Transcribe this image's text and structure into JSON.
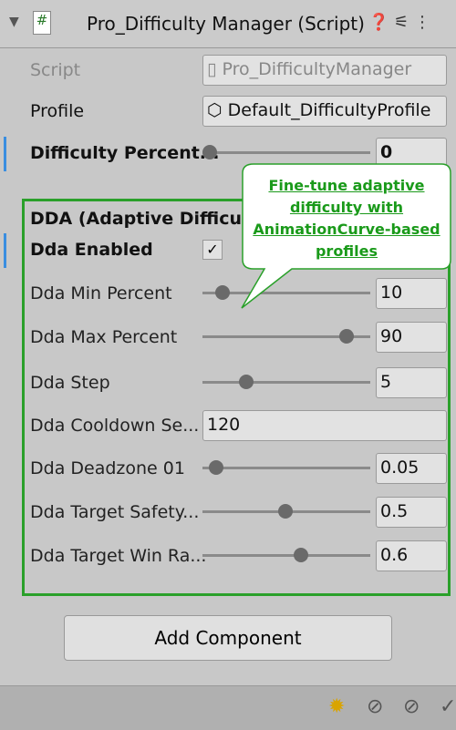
{
  "header": {
    "title": "Pro_Difficulty Manager (Script)"
  },
  "fields": [
    {
      "label": "Script",
      "value": "Pro_DifficultyManager"
    },
    {
      "label": "Profile",
      "value": "Default_DifficultyProfile"
    },
    {
      "label": "Difficulty Percent...",
      "value": "0"
    }
  ],
  "section": {
    "title": "DDA (Adaptive Difficulty)",
    "rows": [
      {
        "label": "Dda Enabled"
      },
      {
        "label": "Dda Min Percent",
        "value": "10"
      },
      {
        "label": "Dda Max Percent",
        "value": "90"
      },
      {
        "label": "Dda Step",
        "value": "5"
      },
      {
        "label": "Dda Cooldown Se...",
        "value": "120"
      },
      {
        "label": "Dda Deadzone 01",
        "value": "0.05"
      },
      {
        "label": "Dda Target Safety...",
        "value": "0.5"
      },
      {
        "label": "Dda Target Win Ra...",
        "value": "0.6"
      }
    ]
  },
  "button": {
    "label": "Add Component"
  },
  "callout": {
    "text": "Fine-tune adaptive difficulty with AnimationCurve-based profiles"
  }
}
